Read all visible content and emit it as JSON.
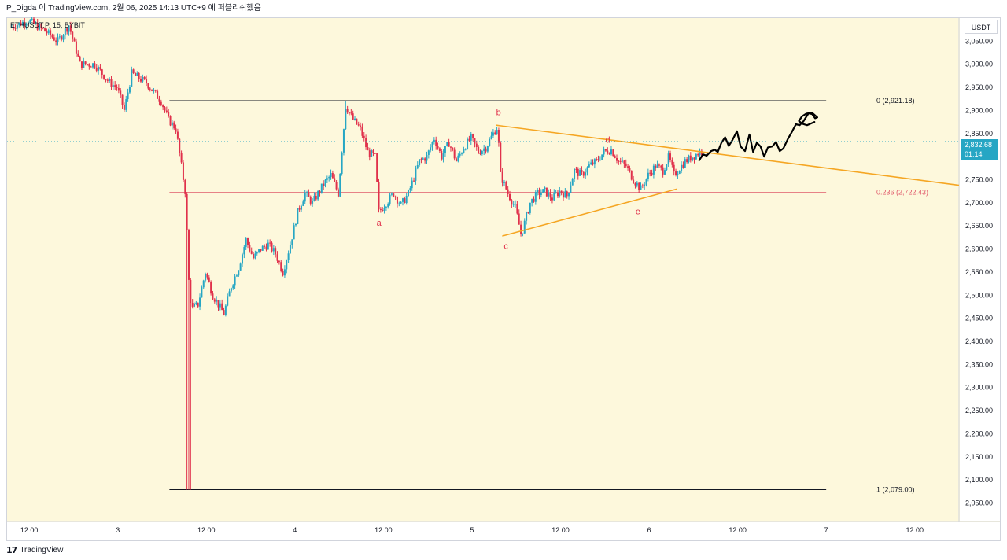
{
  "header": {
    "title": "P_Digda 이 TradingView.com, 2월 06, 2025 14:13 UTC+9 에 퍼블리쉬했음"
  },
  "symbol": "ETHUSDT.P, 15, BYBIT",
  "currency": "USDT",
  "footer": {
    "logo_glyph": "17",
    "brand": "TradingView"
  },
  "current_price": {
    "value": "2,832.68",
    "countdown": "01:14"
  },
  "colors": {
    "background": "#fdf8dc",
    "up": "#26a6c4",
    "down": "#e0314b",
    "fib_line": "#131722",
    "fib_mid_line": "#e05a6b",
    "triangle": "#f5a623",
    "wave_labels": "#e0314b",
    "projection": "#000000",
    "price_line": "#26a6c4"
  },
  "chart_data": {
    "type": "candlestick",
    "ylim": [
      2010,
      3100
    ],
    "y_ticks": [
      "3,050.00",
      "3,000.00",
      "2,950.00",
      "2,900.00",
      "2,850.00",
      "2,800.00",
      "2,750.00",
      "2,700.00",
      "2,650.00",
      "2,600.00",
      "2,550.00",
      "2,500.00",
      "2,450.00",
      "2,400.00",
      "2,350.00",
      "2,300.00",
      "2,250.00",
      "2,200.00",
      "2,150.00",
      "2,100.00",
      "2,050.00"
    ],
    "y_tick_values": [
      3050,
      3000,
      2950,
      2900,
      2850,
      2800,
      2750,
      2700,
      2650,
      2600,
      2550,
      2500,
      2450,
      2400,
      2350,
      2300,
      2250,
      2200,
      2150,
      2100,
      2050
    ],
    "x_ticks": [
      "12:00",
      "3",
      "12:00",
      "4",
      "12:00",
      "5",
      "12:00",
      "6",
      "12:00",
      "7",
      "12:00"
    ],
    "x_tick_times": [
      12,
      24,
      36,
      48,
      60,
      72,
      84,
      96,
      108,
      120,
      132
    ],
    "time_range": [
      9.0,
      138.0
    ],
    "fib_levels": [
      {
        "label": "0 (2,921.18)",
        "value": 2921.18,
        "t_start": 31,
        "t_end": 120
      },
      {
        "label": "0.236 (2,722.43)",
        "value": 2722.43,
        "t_start": 31,
        "t_end": 120
      },
      {
        "label": "1 (2,079.00)",
        "value": 2079.0,
        "t_start": 31,
        "t_end": 120
      }
    ],
    "waves": [
      {
        "label": "a",
        "t": 59.4,
        "price": 2650
      },
      {
        "label": "b",
        "t": 75.6,
        "price": 2890
      },
      {
        "label": "c",
        "t": 76.6,
        "price": 2600
      },
      {
        "label": "d",
        "t": 90.4,
        "price": 2830
      },
      {
        "label": "e",
        "t": 94.5,
        "price": 2675
      }
    ],
    "triangle": {
      "upper": [
        [
          75.3,
          2868
        ],
        [
          138,
          2738
        ]
      ],
      "lower": [
        [
          76.1,
          2628
        ],
        [
          99.8,
          2730
        ]
      ]
    },
    "anchors": [
      [
        9.5,
        3080
      ],
      [
        12,
        3095
      ],
      [
        14,
        3075
      ],
      [
        16,
        3050
      ],
      [
        17.5,
        3085
      ],
      [
        19,
        3000
      ],
      [
        21,
        3000
      ],
      [
        23,
        2960
      ],
      [
        24,
        2950
      ],
      [
        25,
        2900
      ],
      [
        26,
        2980
      ],
      [
        28,
        2960
      ],
      [
        30,
        2920
      ],
      [
        31,
        2880
      ],
      [
        32,
        2860
      ],
      [
        33.3,
        2720
      ],
      [
        33.8,
        2510
      ],
      [
        34.2,
        2470
      ],
      [
        35,
        2480
      ],
      [
        36,
        2550
      ],
      [
        37,
        2500
      ],
      [
        38.5,
        2460
      ],
      [
        39.5,
        2520
      ],
      [
        40.5,
        2560
      ],
      [
        41.5,
        2620
      ],
      [
        42.5,
        2580
      ],
      [
        43.5,
        2600
      ],
      [
        44.5,
        2610
      ],
      [
        45.5,
        2590
      ],
      [
        46.5,
        2550
      ],
      [
        47.5,
        2610
      ],
      [
        48.5,
        2680
      ],
      [
        49.5,
        2720
      ],
      [
        50.5,
        2700
      ],
      [
        52,
        2740
      ],
      [
        53,
        2760
      ],
      [
        54,
        2720
      ],
      [
        55,
        2910
      ],
      [
        56,
        2880
      ],
      [
        57,
        2860
      ],
      [
        58,
        2810
      ],
      [
        59,
        2800
      ],
      [
        59.5,
        2680
      ],
      [
        60.5,
        2700
      ],
      [
        61.5,
        2720
      ],
      [
        62.5,
        2695
      ],
      [
        63.5,
        2720
      ],
      [
        65,
        2790
      ],
      [
        66,
        2800
      ],
      [
        67,
        2840
      ],
      [
        68,
        2800
      ],
      [
        69,
        2830
      ],
      [
        70,
        2790
      ],
      [
        71,
        2820
      ],
      [
        72,
        2840
      ],
      [
        73,
        2810
      ],
      [
        74,
        2820
      ],
      [
        75,
        2850
      ],
      [
        75.6,
        2865
      ],
      [
        76,
        2760
      ],
      [
        77,
        2720
      ],
      [
        78,
        2690
      ],
      [
        78.8,
        2630
      ],
      [
        80,
        2700
      ],
      [
        81,
        2720
      ],
      [
        82,
        2725
      ],
      [
        83,
        2710
      ],
      [
        84,
        2725
      ],
      [
        85,
        2715
      ],
      [
        86,
        2770
      ],
      [
        87,
        2760
      ],
      [
        88,
        2780
      ],
      [
        89,
        2790
      ],
      [
        90,
        2810
      ],
      [
        91,
        2815
      ],
      [
        92,
        2790
      ],
      [
        93,
        2780
      ],
      [
        94,
        2750
      ],
      [
        95,
        2730
      ],
      [
        96,
        2760
      ],
      [
        97,
        2780
      ],
      [
        98,
        2770
      ],
      [
        98.8,
        2800
      ],
      [
        99.5,
        2760
      ],
      [
        101,
        2790
      ],
      [
        102,
        2800
      ],
      [
        103,
        2810
      ]
    ],
    "projection": [
      [
        102.8,
        2792
      ],
      [
        103.3,
        2805
      ],
      [
        103.8,
        2802
      ],
      [
        104.4,
        2812
      ],
      [
        104.9,
        2815
      ],
      [
        105.3,
        2810
      ],
      [
        105.8,
        2830
      ],
      [
        106.3,
        2842
      ],
      [
        106.8,
        2823
      ],
      [
        107.3,
        2836
      ],
      [
        107.9,
        2855
      ],
      [
        108.4,
        2822
      ],
      [
        109.0,
        2812
      ],
      [
        109.6,
        2848
      ],
      [
        110.1,
        2810
      ],
      [
        110.6,
        2830
      ],
      [
        111.1,
        2822
      ],
      [
        111.6,
        2800
      ],
      [
        112.1,
        2820
      ],
      [
        112.7,
        2822
      ],
      [
        113.2,
        2832
      ],
      [
        113.7,
        2812
      ],
      [
        114.2,
        2818
      ],
      [
        114.8,
        2838
      ],
      [
        115.4,
        2855
      ],
      [
        115.9,
        2870
      ],
      [
        116.4,
        2868
      ],
      [
        116.9,
        2876
      ],
      [
        117.6,
        2894
      ],
      [
        118.1,
        2892
      ],
      [
        118.5,
        2883
      ],
      [
        118.8,
        2885
      ],
      [
        118.1,
        2895
      ],
      [
        117.3,
        2893
      ],
      [
        116.7,
        2887
      ],
      [
        116.3,
        2877
      ],
      [
        116.8,
        2871
      ],
      [
        117.4,
        2868
      ],
      [
        118.4,
        2875
      ]
    ]
  }
}
